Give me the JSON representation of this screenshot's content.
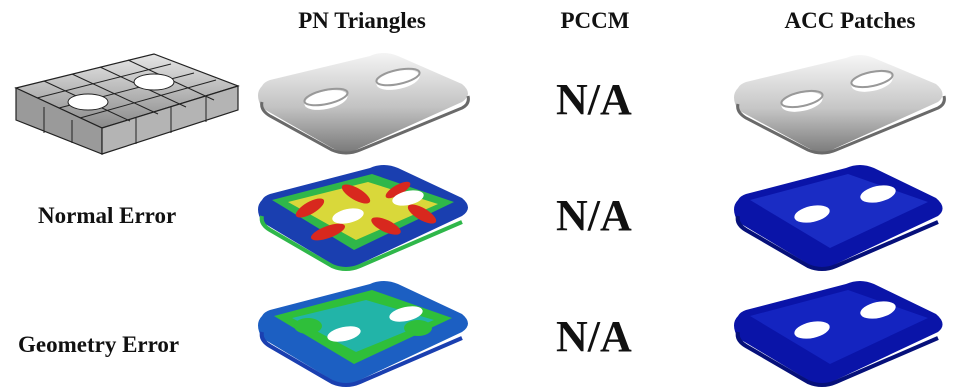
{
  "columns": {
    "pn_triangles": "PN Triangles",
    "pccm": "PCCM",
    "acc_patches": "ACC Patches"
  },
  "rows": {
    "normal_error": "Normal Error",
    "geometry_error": "Geometry Error"
  },
  "not_available": [
    "N/A",
    "N/A",
    "N/A"
  ],
  "colors": {
    "surface_gray": "#b8b8b8",
    "error_blue": "#0a14a8",
    "error_green": "#2fbf3a",
    "error_yellow": "#e3e03a",
    "error_red": "#d8281e",
    "mesh_lines": "#222222"
  }
}
